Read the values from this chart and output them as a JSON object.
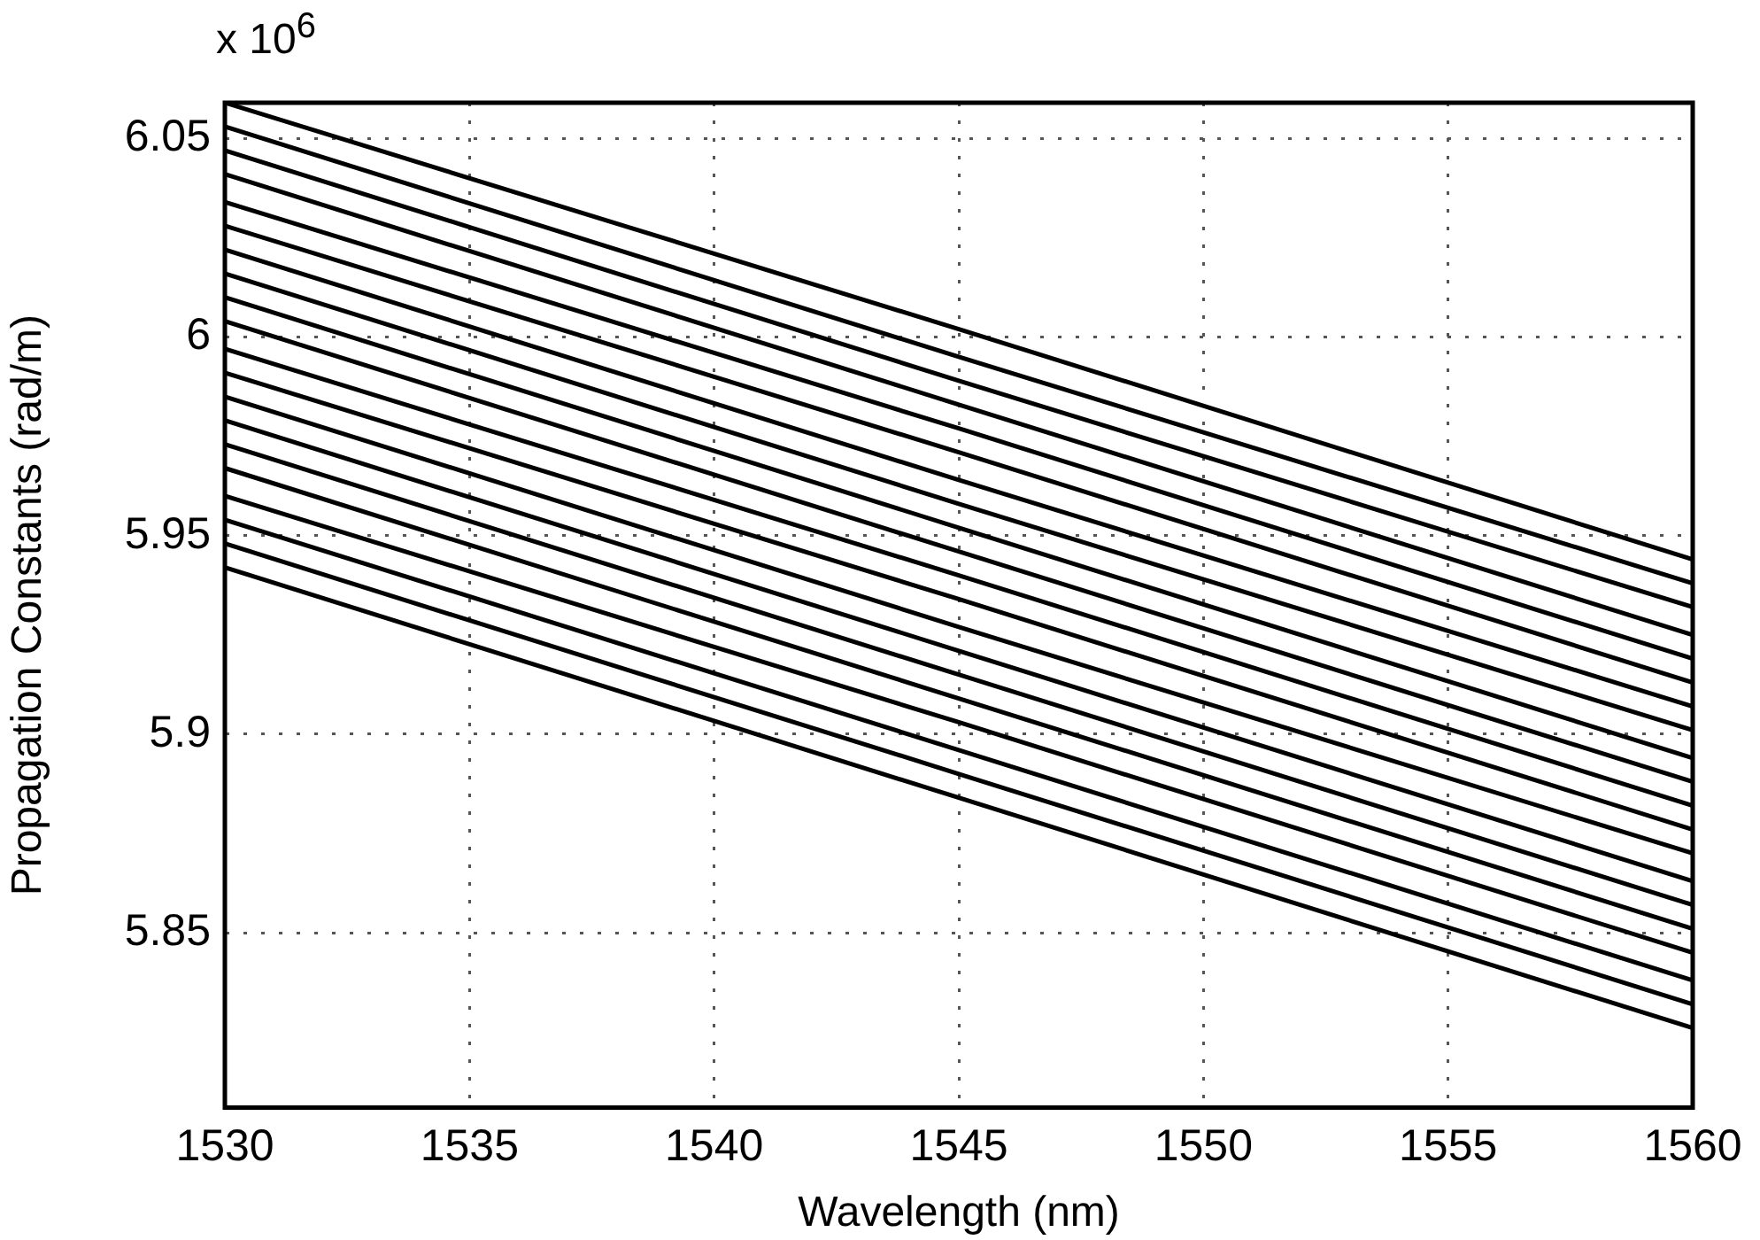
{
  "chart_data": {
    "type": "line",
    "xlabel": "Wavelength (nm)",
    "ylabel": "Propagation Constants (rad/m)",
    "annotations": [
      "x 10$^{6}$"
    ],
    "x": [
      1530,
      1545,
      1560
    ],
    "xlim": [
      1530,
      1560
    ],
    "xticks": [
      1530,
      1535,
      1540,
      1545,
      1550,
      1555,
      1560
    ],
    "ylim": [
      5.806,
      6.059
    ],
    "yticks": [
      5.85,
      5.9,
      5.95,
      6,
      6.05
    ],
    "grid": true,
    "legend": false,
    "marker": "none",
    "line_style": "solid",
    "series": [
      {
        "color": "#000000",
        "values": [
          6.059,
          6.002,
          5.944
        ]
      },
      {
        "color": "#000000",
        "values": [
          6.053,
          5.995,
          5.938
        ]
      },
      {
        "color": "#000000",
        "values": [
          6.047,
          5.989,
          5.932
        ]
      },
      {
        "color": "#000000",
        "values": [
          6.041,
          5.983,
          5.925
        ]
      },
      {
        "color": "#000000",
        "values": [
          6.034,
          5.977,
          5.919
        ]
      },
      {
        "color": "#000000",
        "values": [
          6.028,
          5.971,
          5.913
        ]
      },
      {
        "color": "#000000",
        "values": [
          6.022,
          5.964,
          5.907
        ]
      },
      {
        "color": "#000000",
        "values": [
          6.016,
          5.958,
          5.901
        ]
      },
      {
        "color": "#000000",
        "values": [
          6.01,
          5.952,
          5.894
        ]
      },
      {
        "color": "#000000",
        "values": [
          6.004,
          5.946,
          5.888
        ]
      },
      {
        "color": "#000000",
        "values": [
          5.997,
          5.94,
          5.882
        ]
      },
      {
        "color": "#000000",
        "values": [
          5.991,
          5.934,
          5.876
        ]
      },
      {
        "color": "#000000",
        "values": [
          5.985,
          5.927,
          5.87
        ]
      },
      {
        "color": "#000000",
        "values": [
          5.979,
          5.921,
          5.863
        ]
      },
      {
        "color": "#000000",
        "values": [
          5.973,
          5.915,
          5.857
        ]
      },
      {
        "color": "#000000",
        "values": [
          5.967,
          5.909,
          5.851
        ]
      },
      {
        "color": "#000000",
        "values": [
          5.96,
          5.903,
          5.845
        ]
      },
      {
        "color": "#000000",
        "values": [
          5.954,
          5.896,
          5.838
        ]
      },
      {
        "color": "#000000",
        "values": [
          5.948,
          5.89,
          5.832
        ]
      },
      {
        "color": "#000000",
        "values": [
          5.942,
          5.884,
          5.826
        ]
      }
    ]
  }
}
